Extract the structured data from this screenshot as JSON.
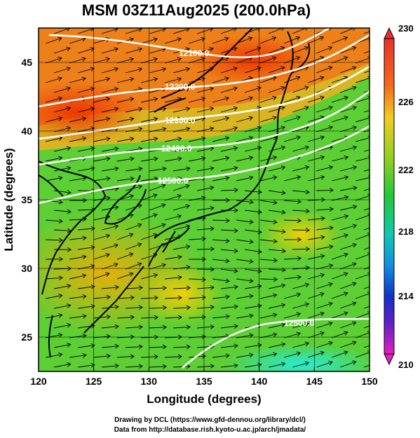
{
  "title": "MSM 03Z11Aug2025 (200.0hPa)",
  "xlabel": "Longitude (degrees)",
  "ylabel": "Latitude  (degrees)",
  "footer": {
    "line1": "Drawing by DCL (https://www.gfd-dennou.org/library/dcl/)",
    "line2": "Data from http://database.rish.kyoto-u.ac.jp/arch/jmadata/"
  },
  "map": {
    "lon_range": [
      120,
      150
    ],
    "lat_range": [
      22.5,
      47.5
    ],
    "lon_ticks": [
      120,
      125,
      130,
      135,
      140,
      145,
      150
    ],
    "lat_ticks": [
      25,
      30,
      35,
      40,
      45
    ],
    "field": "temperature",
    "contour_labels": [
      "12500.0",
      "12400.0",
      "12300.0",
      "12200.0",
      "12100.0",
      "12500.0"
    ],
    "colors": {
      "cold": "#00e0e0",
      "mid": "#22cc22",
      "warm": "#ffcc00",
      "hot": "#ee4400"
    }
  },
  "colorbar": {
    "min": 210,
    "max": 230,
    "ticks": [
      "230",
      "226",
      "222",
      "218",
      "214",
      "210"
    ]
  }
}
